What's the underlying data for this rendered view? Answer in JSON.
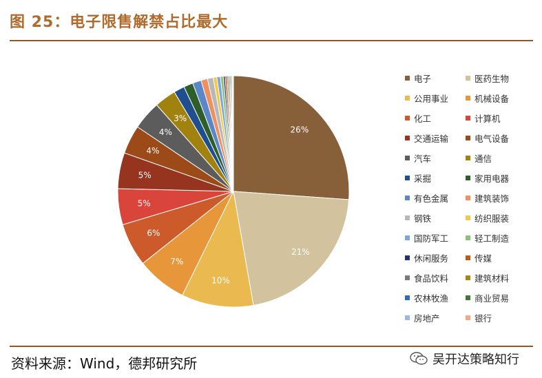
{
  "header": {
    "title": "图 25：电子限售解禁占比最大"
  },
  "footer": {
    "source": "资料来源：Wind，德邦研究所",
    "watermark": "吴开达策略知行"
  },
  "chart_data": {
    "type": "pie",
    "title": "",
    "legend_position": "right",
    "slices": [
      {
        "name": "电子",
        "value": 26,
        "label": "26%",
        "color": "#87603a"
      },
      {
        "name": "医药生物",
        "value": 21,
        "label": "21%",
        "color": "#d3c29e"
      },
      {
        "name": "公用事业",
        "value": 10,
        "label": "10%",
        "color": "#eab94f"
      },
      {
        "name": "机械设备",
        "value": 7,
        "label": "7%",
        "color": "#e8963a"
      },
      {
        "name": "化工",
        "value": 6,
        "label": "6%",
        "color": "#cd5a2a"
      },
      {
        "name": "计算机",
        "value": 5,
        "label": "5%",
        "color": "#d9453a"
      },
      {
        "name": "交通运输",
        "value": 5,
        "label": "5%",
        "color": "#96341f"
      },
      {
        "name": "电气设备",
        "value": 4,
        "label": "4%",
        "color": "#9c4a18"
      },
      {
        "name": "汽车",
        "value": 4,
        "label": "4%",
        "color": "#5c5c5c"
      },
      {
        "name": "通信",
        "value": 3,
        "label": "3%",
        "color": "#a2820e"
      },
      {
        "name": "采掘",
        "value": 1.5,
        "label": "",
        "color": "#1f4f8e"
      },
      {
        "name": "家用电器",
        "value": 1.3,
        "label": "",
        "color": "#2e5f2a"
      },
      {
        "name": "有色金属",
        "value": 1.2,
        "label": "",
        "color": "#5b86c8"
      },
      {
        "name": "建筑装饰",
        "value": 0.9,
        "label": "",
        "color": "#ef9060"
      },
      {
        "name": "钢铁",
        "value": 0.8,
        "label": "",
        "color": "#b8b8b8"
      },
      {
        "name": "纺织服装",
        "value": 0.5,
        "label": "",
        "color": "#f3c843"
      },
      {
        "name": "国防军工",
        "value": 0.5,
        "label": "",
        "color": "#7aa7d8"
      },
      {
        "name": "轻工制造",
        "value": 0.4,
        "label": "",
        "color": "#8cc07a"
      },
      {
        "name": "休闲服务",
        "value": 0.25,
        "label": "",
        "color": "#22336e"
      },
      {
        "name": "传媒",
        "value": 0.25,
        "label": "",
        "color": "#c05a18"
      },
      {
        "name": "食品饮料",
        "value": 0.2,
        "label": "",
        "color": "#7a7a7a"
      },
      {
        "name": "建筑材料",
        "value": 0.2,
        "label": "",
        "color": "#a48818"
      },
      {
        "name": "农林牧渔",
        "value": 0.15,
        "label": "",
        "color": "#2c6fb6"
      },
      {
        "name": "商业贸易",
        "value": 0.15,
        "label": "",
        "color": "#3e7a36"
      },
      {
        "name": "房地产",
        "value": 0.1,
        "label": "",
        "color": "#9cb8e0"
      },
      {
        "name": "银行",
        "value": 0.1,
        "label": "",
        "color": "#f2a884"
      }
    ]
  }
}
